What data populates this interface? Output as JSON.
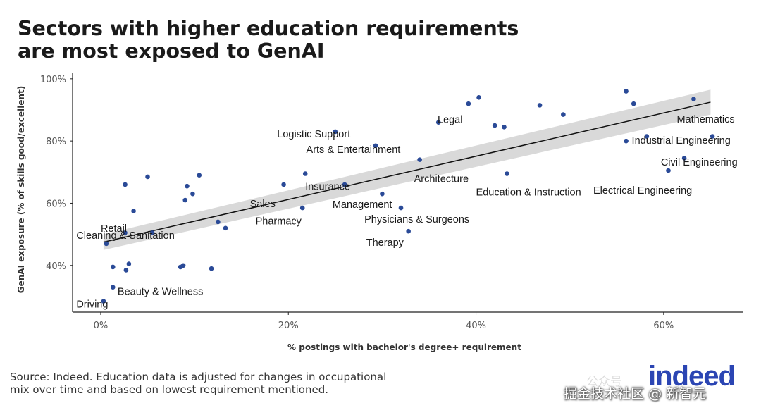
{
  "title_lines": [
    "Sectors with higher education requirements",
    "are most exposed to GenAI"
  ],
  "source_lines": [
    "Source: Indeed. Education data is adjusted for changes in occupational",
    " mix over time and based on lowest requirement mentioned."
  ],
  "logo_text": "indeed",
  "watermark": {
    "line1": "公众号",
    "line2": "掘金技术社区 @ 新智元"
  },
  "colors": {
    "point": "#2a4a97",
    "trend": "#111111",
    "band": "#d9d9d9",
    "logo": "#2b45b3"
  },
  "chart_data": {
    "type": "scatter",
    "xlabel": "% postings with bachelor's degree+ requirement",
    "ylabel": "GenAI exposure (% of skills good/excellent)",
    "xlim": [
      -3,
      68.5
    ],
    "ylim": [
      25,
      102
    ],
    "xticks": [
      0,
      20,
      40,
      60
    ],
    "xtick_labels": [
      "0%",
      "20%",
      "40%",
      "60%"
    ],
    "yticks": [
      40,
      60,
      80,
      100
    ],
    "ytick_labels": [
      "40%",
      "60%",
      "80%",
      "100%"
    ],
    "grid": false,
    "trend": {
      "x": [
        0.3,
        65
      ],
      "y": [
        47.5,
        92.5
      ]
    },
    "band": {
      "x": [
        0.3,
        65
      ],
      "upper": [
        50,
        96.5
      ],
      "lower": [
        45,
        88.5
      ]
    },
    "points": [
      {
        "x": 0.3,
        "y": 28.5,
        "label": "Driving"
      },
      {
        "x": 1.3,
        "y": 33,
        "label": "Beauty & Wellness"
      },
      {
        "x": 0.6,
        "y": 47,
        "label": "Cleaning & Sanitation"
      },
      {
        "x": 2.6,
        "y": 50.5,
        "label": "Retail"
      },
      {
        "x": 19.5,
        "y": 66,
        "label": "Sales"
      },
      {
        "x": 21.5,
        "y": 58.5,
        "label": "Pharmacy"
      },
      {
        "x": 21.8,
        "y": 69.5,
        "label": "Insurance"
      },
      {
        "x": 25,
        "y": 83,
        "label": "Logistic Support"
      },
      {
        "x": 29.3,
        "y": 78.5,
        "label": "Arts & Entertainment"
      },
      {
        "x": 26,
        "y": 66,
        "label": "Management"
      },
      {
        "x": 30,
        "y": 63,
        "label": "Management"
      },
      {
        "x": 32,
        "y": 58.5,
        "label": "Physicians & Surgeons"
      },
      {
        "x": 32.8,
        "y": 51,
        "label": "Therapy"
      },
      {
        "x": 34,
        "y": 74,
        "label": "Architecture"
      },
      {
        "x": 36,
        "y": 86,
        "label": "Legal"
      },
      {
        "x": 43.3,
        "y": 69.5,
        "label": "Education & Instruction"
      },
      {
        "x": 60.5,
        "y": 70.5,
        "label": "Electrical Engineering"
      },
      {
        "x": 62.2,
        "y": 74.5,
        "label": "Civil Engineering"
      },
      {
        "x": 58.2,
        "y": 81.5,
        "label": "Industrial Engineering"
      },
      {
        "x": 63.2,
        "y": 93.5,
        "label": "Mathematics"
      },
      {
        "x": 1.3,
        "y": 39.5,
        "label": ""
      },
      {
        "x": 2.7,
        "y": 38.5,
        "label": ""
      },
      {
        "x": 3.0,
        "y": 40.5,
        "label": ""
      },
      {
        "x": 8.5,
        "y": 39.5,
        "label": ""
      },
      {
        "x": 8.8,
        "y": 40,
        "label": ""
      },
      {
        "x": 11.8,
        "y": 39,
        "label": ""
      },
      {
        "x": 2.6,
        "y": 66,
        "label": ""
      },
      {
        "x": 3.5,
        "y": 57.5,
        "label": ""
      },
      {
        "x": 5,
        "y": 68.5,
        "label": ""
      },
      {
        "x": 5.5,
        "y": 50.5,
        "label": ""
      },
      {
        "x": 9.0,
        "y": 61,
        "label": ""
      },
      {
        "x": 9.2,
        "y": 65.5,
        "label": ""
      },
      {
        "x": 9.8,
        "y": 63,
        "label": ""
      },
      {
        "x": 10.5,
        "y": 69,
        "label": ""
      },
      {
        "x": 12.5,
        "y": 54,
        "label": ""
      },
      {
        "x": 13.3,
        "y": 52,
        "label": ""
      },
      {
        "x": 39.2,
        "y": 92,
        "label": ""
      },
      {
        "x": 40.3,
        "y": 94,
        "label": ""
      },
      {
        "x": 42,
        "y": 85,
        "label": ""
      },
      {
        "x": 43,
        "y": 84.5,
        "label": ""
      },
      {
        "x": 46.8,
        "y": 91.5,
        "label": ""
      },
      {
        "x": 49.3,
        "y": 88.5,
        "label": ""
      },
      {
        "x": 56,
        "y": 96,
        "label": ""
      },
      {
        "x": 56.8,
        "y": 92,
        "label": ""
      },
      {
        "x": 56,
        "y": 80,
        "label": ""
      },
      {
        "x": 65.2,
        "y": 81.5,
        "label": ""
      }
    ],
    "annotations": [
      {
        "text": "Driving",
        "x": -2.6,
        "y": 26.5
      },
      {
        "text": "Beauty & Wellness",
        "x": 1.8,
        "y": 30.6
      },
      {
        "text": "Cleaning & Sanitation",
        "x": -2.6,
        "y": 48.6
      },
      {
        "text": "Retail",
        "x": 0,
        "y": 50.8
      },
      {
        "text": "Sales",
        "x": 15.9,
        "y": 58.7
      },
      {
        "text": "Pharmacy",
        "x": 16.5,
        "y": 53.2
      },
      {
        "text": "Insurance",
        "x": 21.8,
        "y": 64.3
      },
      {
        "text": "Logistic Support",
        "x": 18.8,
        "y": 81.2
      },
      {
        "text": "Arts & Entertainment",
        "x": 21.9,
        "y": 76.2
      },
      {
        "text": "Management",
        "x": 24.7,
        "y": 58.5
      },
      {
        "text": "Physicians & Surgeons",
        "x": 28.1,
        "y": 53.8
      },
      {
        "text": "Therapy",
        "x": 28.3,
        "y": 46.3
      },
      {
        "text": "Architecture",
        "x": 33.4,
        "y": 66.8
      },
      {
        "text": "Legal",
        "x": 35.9,
        "y": 85.8
      },
      {
        "text": "Education & Instruction",
        "x": 40,
        "y": 62.5
      },
      {
        "text": "Electrical Engineering",
        "x": 52.5,
        "y": 63.1
      },
      {
        "text": "Civil Engineering",
        "x": 59.7,
        "y": 72.1
      },
      {
        "text": "Industrial Engineering",
        "x": 56.6,
        "y": 79.1
      },
      {
        "text": "Mathematics",
        "x": 61.4,
        "y": 85.9
      }
    ]
  }
}
